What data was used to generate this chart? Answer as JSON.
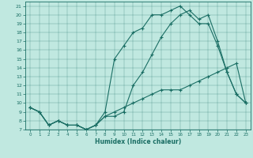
{
  "xlabel": "Humidex (Indice chaleur)",
  "bg_color": "#c0e8e0",
  "line_color": "#1a6e64",
  "xlim": [
    -0.5,
    23.5
  ],
  "ylim": [
    7,
    21.5
  ],
  "xticks": [
    0,
    1,
    2,
    3,
    4,
    5,
    6,
    7,
    8,
    9,
    10,
    11,
    12,
    13,
    14,
    15,
    16,
    17,
    18,
    19,
    20,
    21,
    22,
    23
  ],
  "yticks": [
    7,
    8,
    9,
    10,
    11,
    12,
    13,
    14,
    15,
    16,
    17,
    18,
    19,
    20,
    21
  ],
  "line1_x": [
    0,
    1,
    2,
    3,
    4,
    5,
    6,
    7,
    8,
    9,
    10,
    11,
    12,
    13,
    14,
    15,
    16,
    17,
    18,
    19,
    20,
    21,
    22,
    23
  ],
  "line1_y": [
    9.5,
    9.0,
    7.5,
    8.0,
    7.5,
    7.5,
    7.0,
    7.5,
    8.5,
    9.0,
    9.5,
    10.0,
    10.5,
    11.0,
    11.5,
    11.5,
    11.5,
    12.0,
    12.5,
    13.0,
    13.5,
    14.0,
    14.5,
    10.0
  ],
  "line2_x": [
    0,
    1,
    2,
    3,
    4,
    5,
    6,
    7,
    8,
    9,
    10,
    11,
    12,
    13,
    14,
    15,
    16,
    17,
    18,
    19,
    20,
    21,
    22,
    23
  ],
  "line2_y": [
    9.5,
    9.0,
    7.5,
    8.0,
    7.5,
    7.5,
    7.0,
    7.5,
    9.0,
    15.0,
    16.5,
    18.0,
    18.5,
    20.0,
    20.0,
    20.5,
    21.0,
    20.0,
    19.0,
    19.0,
    16.5,
    13.5,
    11.0,
    10.0
  ],
  "line3_x": [
    0,
    1,
    2,
    3,
    4,
    5,
    6,
    7,
    8,
    9,
    10,
    11,
    12,
    13,
    14,
    15,
    16,
    17,
    18,
    19,
    20,
    21,
    22,
    23
  ],
  "line3_y": [
    9.5,
    9.0,
    7.5,
    8.0,
    7.5,
    7.5,
    7.0,
    7.5,
    8.5,
    8.5,
    9.0,
    12.0,
    13.5,
    15.5,
    17.5,
    19.0,
    20.0,
    20.5,
    19.5,
    20.0,
    17.0,
    13.5,
    11.0,
    10.0
  ]
}
